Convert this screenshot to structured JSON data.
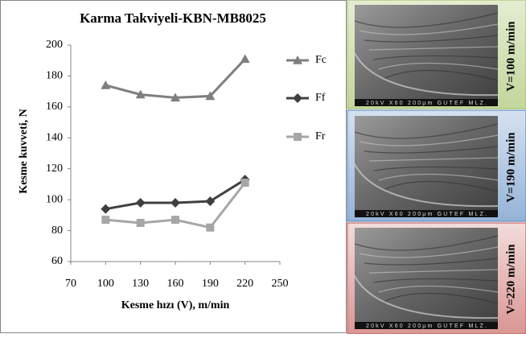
{
  "chart_data": {
    "type": "line",
    "title": "Karma Takviyeli-KBN-MB8025",
    "x_label": "Kesme hızı (V), m/min",
    "y_label": "Kesme kuvveti, N",
    "x": [
      100,
      130,
      160,
      190,
      220
    ],
    "xlim": [
      70,
      250
    ],
    "xticks": [
      70,
      100,
      130,
      160,
      190,
      220,
      250
    ],
    "ylim": [
      60,
      200
    ],
    "yticks": [
      60,
      80,
      100,
      120,
      140,
      160,
      180,
      200
    ],
    "grid": false,
    "legend": "right",
    "series": [
      {
        "name": "Fc",
        "color": "#7f7f7f",
        "marker": "triangle",
        "values": [
          174,
          168,
          166,
          167,
          191
        ]
      },
      {
        "name": "Ff",
        "color": "#404040",
        "marker": "diamond",
        "values": [
          94,
          98,
          98,
          99,
          113
        ]
      },
      {
        "name": "Fr",
        "color": "#a6a6a6",
        "marker": "square",
        "values": [
          87,
          85,
          87,
          82,
          111
        ]
      }
    ]
  },
  "micrographs": [
    {
      "label": "V=100 m/min",
      "caption": "20kV X60 200µm GUTEF MLZ."
    },
    {
      "label": "V=190 m/min",
      "caption": "20kV X60 200µm GUTEF MLZ."
    },
    {
      "label": "V=220 m/min",
      "caption": "20kV X60 200µm GUTEF MLZ."
    }
  ]
}
